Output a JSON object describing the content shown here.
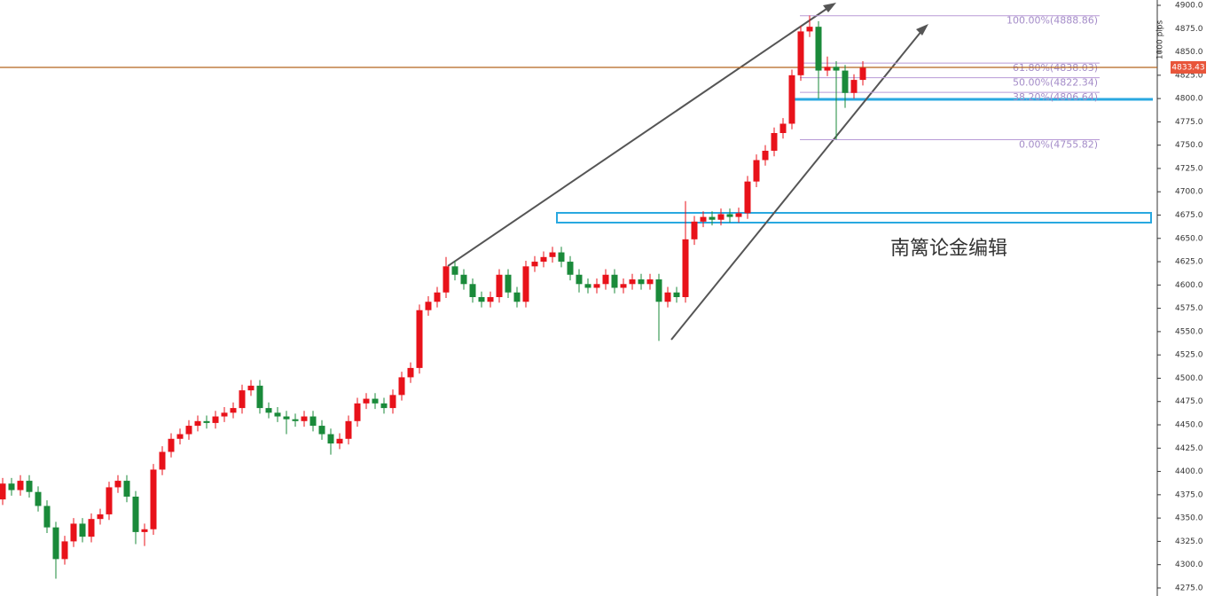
{
  "chart_data": {
    "type": "candlestick",
    "ylim": [
      4266.4,
      4905.7
    ],
    "yticks": [
      {
        "value": 4275,
        "label": "4275.0"
      },
      {
        "value": 4300,
        "label": "4300.0"
      },
      {
        "value": 4325,
        "label": "4325.0"
      },
      {
        "value": 4350,
        "label": "4350.0"
      },
      {
        "value": 4375,
        "label": "4375.0"
      },
      {
        "value": 4400,
        "label": "4400.0"
      },
      {
        "value": 4425,
        "label": "4425.0"
      },
      {
        "value": 4450,
        "label": "4450.0"
      },
      {
        "value": 4475,
        "label": "4475.0"
      },
      {
        "value": 4500,
        "label": "4500.0"
      },
      {
        "value": 4525,
        "label": "4525.0"
      },
      {
        "value": 4550,
        "label": "4550.0"
      },
      {
        "value": 4575,
        "label": "4575.0"
      },
      {
        "value": 4600,
        "label": "4600.0"
      },
      {
        "value": 4625,
        "label": "4625.0"
      },
      {
        "value": 4650,
        "label": "4650.0"
      },
      {
        "value": 4675,
        "label": "4675.0"
      },
      {
        "value": 4700,
        "label": "4700.0"
      },
      {
        "value": 4725,
        "label": "4725.0"
      },
      {
        "value": 4750,
        "label": "4750.0"
      },
      {
        "value": 4775,
        "label": "4775.0"
      },
      {
        "value": 4800,
        "label": "4800.0"
      },
      {
        "value": 4825,
        "label": "4825.0"
      },
      {
        "value": 4850,
        "label": "4850.0"
      },
      {
        "value": 4875,
        "label": "4875.0"
      },
      {
        "value": 4900,
        "label": "4900.0"
      }
    ],
    "up_color": "#e8121a",
    "down_color": "#1a8a3a",
    "open": [
      4370,
      4387,
      4380,
      4390,
      4378,
      4363,
      4340,
      4306,
      4325,
      4344,
      4330,
      4349,
      4354,
      4383,
      4390,
      4373,
      4335,
      4338,
      4402,
      4421,
      4435,
      4440,
      4449,
      4454,
      4452,
      4459,
      4463,
      4468,
      4487,
      4492,
      4468,
      4463,
      4459,
      4456,
      4454,
      4459,
      4449,
      4440,
      4430,
      4435,
      4454,
      4473,
      4478,
      4473,
      4468,
      4482,
      4501,
      4511,
      4573,
      4582,
      4592,
      4620,
      4611,
      4601,
      4587,
      4582,
      4587,
      4611,
      4592,
      4582,
      4620,
      4625,
      4630,
      4635,
      4625,
      4611,
      4601,
      4597,
      4601,
      4611,
      4597,
      4601,
      4606,
      4601,
      4606,
      4582,
      4592,
      4587,
      4649,
      4668,
      4673,
      4670,
      4676,
      4673,
      4677,
      4711,
      4734,
      4744,
      4763,
      4773,
      4825,
      4872,
      4877,
      4830,
      4834,
      4830,
      4806,
      4820
    ],
    "high": [
      4393,
      4393,
      4396,
      4396,
      4384,
      4369,
      4346,
      4331,
      4350,
      4350,
      4355,
      4360,
      4389,
      4396,
      4396,
      4379,
      4344,
      4408,
      4427,
      4441,
      4446,
      4455,
      4460,
      4460,
      4465,
      4469,
      4474,
      4493,
      4498,
      4498,
      4474,
      4469,
      4465,
      4462,
      4465,
      4465,
      4455,
      4446,
      4441,
      4460,
      4479,
      4484,
      4484,
      4479,
      4488,
      4507,
      4517,
      4579,
      4588,
      4598,
      4630,
      4626,
      4617,
      4607,
      4593,
      4593,
      4617,
      4617,
      4598,
      4626,
      4631,
      4636,
      4641,
      4641,
      4631,
      4617,
      4607,
      4607,
      4617,
      4617,
      4607,
      4612,
      4612,
      4612,
      4612,
      4598,
      4598,
      4690,
      4674,
      4679,
      4679,
      4682,
      4682,
      4683,
      4717,
      4740,
      4750,
      4769,
      4779,
      4831,
      4878,
      4889,
      4883,
      4845,
      4840,
      4836,
      4826,
      4840
    ],
    "low": [
      4364,
      4374,
      4374,
      4372,
      4357,
      4334,
      4285,
      4300,
      4319,
      4324,
      4324,
      4343,
      4348,
      4377,
      4367,
      4322,
      4320,
      4332,
      4396,
      4415,
      4429,
      4434,
      4443,
      4446,
      4446,
      4453,
      4457,
      4462,
      4481,
      4462,
      4457,
      4453,
      4440,
      4448,
      4448,
      4443,
      4434,
      4418,
      4424,
      4429,
      4448,
      4467,
      4467,
      4462,
      4462,
      4476,
      4495,
      4505,
      4567,
      4576,
      4586,
      4605,
      4595,
      4581,
      4576,
      4576,
      4581,
      4586,
      4576,
      4576,
      4614,
      4619,
      4624,
      4619,
      4605,
      4592,
      4591,
      4591,
      4595,
      4591,
      4591,
      4595,
      4595,
      4595,
      4540,
      4576,
      4581,
      4581,
      4643,
      4662,
      4664,
      4664,
      4667,
      4667,
      4671,
      4705,
      4728,
      4738,
      4757,
      4767,
      4819,
      4866,
      4800,
      4824,
      4756,
      4790,
      4800,
      4814
    ],
    "close": [
      4387,
      4380,
      4390,
      4378,
      4363,
      4340,
      4306,
      4325,
      4344,
      4330,
      4349,
      4354,
      4383,
      4390,
      4373,
      4335,
      4338,
      4402,
      4421,
      4435,
      4440,
      4449,
      4454,
      4452,
      4459,
      4463,
      4468,
      4487,
      4492,
      4468,
      4463,
      4459,
      4456,
      4454,
      4459,
      4449,
      4440,
      4430,
      4435,
      4454,
      4473,
      4478,
      4473,
      4468,
      4482,
      4501,
      4511,
      4573,
      4582,
      4592,
      4620,
      4611,
      4601,
      4587,
      4582,
      4587,
      4611,
      4592,
      4582,
      4620,
      4625,
      4630,
      4635,
      4625,
      4611,
      4601,
      4597,
      4601,
      4611,
      4597,
      4601,
      4606,
      4601,
      4606,
      4582,
      4592,
      4587,
      4649,
      4668,
      4673,
      4670,
      4676,
      4673,
      4677,
      4711,
      4734,
      4744,
      4763,
      4773,
      4825,
      4872,
      4877,
      4830,
      4834,
      4830,
      4806,
      4820,
      4833
    ],
    "fib_levels": [
      {
        "value": 4888.86,
        "label": "100.00%(4888.86)"
      },
      {
        "value": 4838.03,
        "label": "61.80%(4838.03)"
      },
      {
        "value": 4822.34,
        "label": "50.00%(4822.34)"
      },
      {
        "value": 4806.64,
        "label": "38.20%(4806.64)"
      },
      {
        "value": 4755.82,
        "label": "0.00%(4755.82)"
      }
    ],
    "current_price": {
      "value": 4833.43,
      "label": "4833.43"
    },
    "annotation": "南篱论金编辑",
    "pips_label": "1000 pips"
  }
}
